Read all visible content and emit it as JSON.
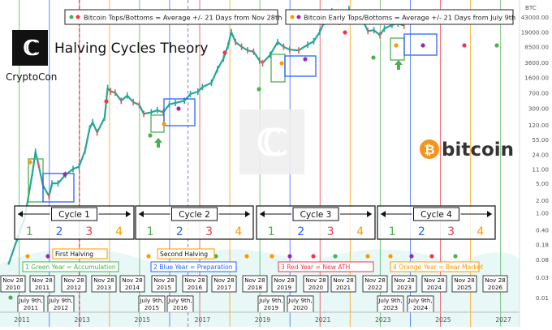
{
  "header": {
    "title": "Halving Cycles Theory",
    "brand": "CryptoCon",
    "coin_name": "bitcoin",
    "coin_symbol": "₿",
    "legend_tops": "Bitcoin Tops/Bottoms = Average +/- 21 Days from Nov 28th",
    "legend_early": "Bitcoin  Early Tops/Bottoms = Average +/- 21 Days from July 9th",
    "currency": "BTC"
  },
  "cycles": [
    {
      "label": "Cycle 1",
      "years": [
        "1",
        "2",
        "3",
        "4"
      ]
    },
    {
      "label": "Cycle 2",
      "years": [
        "1",
        "2",
        "3",
        "4"
      ]
    },
    {
      "label": "Cycle 3",
      "years": [
        "1",
        "2",
        "3",
        "4"
      ]
    },
    {
      "label": "Cycle 4",
      "years": [
        "1",
        "2",
        "3",
        "4"
      ]
    }
  ],
  "halvings": [
    {
      "label": "First Halving"
    },
    {
      "label": "Second Halving"
    }
  ],
  "year_legend": [
    {
      "label": "1 Green Year = Accumulation",
      "color": "#4caf50"
    },
    {
      "label": "2 Blue Year = Preparation",
      "color": "#2962ff"
    },
    {
      "label": "3 Red Year = New ATH",
      "color": "#f23645"
    },
    {
      "label": "4 Orange Year = Bear Market",
      "color": "#ff9800"
    }
  ],
  "nov_labels": [
    "Nov 28\n2010",
    "Nov 28\n2011",
    "Nov 28\n2012",
    "Nov 28\n2013",
    "Nov 28\n2014",
    "Nov 28\n2015",
    "Nov 28\n2016",
    "Nov 28\n2017",
    "Nov 28\n2018",
    "Nov 28\n2019",
    "Nov 28\n2020",
    "Nov 28\n2021",
    "Nov 28\n2022",
    "Nov 28\n2023",
    "Nov 28\n2024",
    "Nov 28\n2025",
    "Nov 28\n2026"
  ],
  "july_labels": [
    "July 9th,\n2011",
    "July 9th,\n2012",
    "July 9th,\n2015",
    "July 9th,\n2016",
    "July 9th,\n2019",
    "July 9th,\n2020",
    "July 9th,\n2023",
    "July 9th,\n2024"
  ],
  "colors": {
    "green": "#4caf50",
    "blue": "#2962ff",
    "red": "#f23645",
    "orange": "#ff9800",
    "up": "#26a69a",
    "down": "#ef5350",
    "bitcoin": "#f7931a"
  },
  "chart_data": {
    "type": "line",
    "title": "Halving Cycles Theory",
    "y_scale": "log",
    "ylim": [
      0.01,
      200000
    ],
    "xlim": [
      2011,
      2027
    ],
    "x_ticks": [
      "2011",
      "2013",
      "2015",
      "2017",
      "2019",
      "2021",
      "2023",
      "2025",
      "2027"
    ],
    "y_ticks": [
      "43000.00",
      "19000.00",
      "8500.00",
      "3600.00",
      "1600.00",
      "700.00",
      "300.00",
      "120.00",
      "55.00",
      "24.00",
      "11.00",
      "5.00",
      "2.00",
      "1.00",
      "0.40",
      "0.18",
      "0.08",
      "0.03",
      "0.01"
    ],
    "grid": false,
    "series": [
      {
        "x": [
          2010.55,
          2010.85,
          2011.1,
          2011.35,
          2011.45,
          2011.55,
          2011.7,
          2011.9,
          2012.0,
          2012.2,
          2012.45,
          2012.7,
          2012.9,
          2013.1,
          2013.25,
          2013.35,
          2013.5,
          2013.75,
          2013.85,
          2013.95,
          2014.1,
          2014.3,
          2014.5,
          2014.7,
          2014.9,
          2015.05,
          2015.3,
          2015.5,
          2015.7,
          2015.9,
          2016.1,
          2016.4,
          2016.6,
          2016.85,
          2017.0,
          2017.3,
          2017.5,
          2017.7,
          2017.85,
          2017.96,
          2018.1,
          2018.3,
          2018.5,
          2018.7,
          2018.9,
          2019.0,
          2019.25,
          2019.5,
          2019.7,
          2019.9,
          2020.2,
          2020.5,
          2020.7,
          2020.9,
          2021.05,
          2021.3,
          2021.55,
          2021.75,
          2021.87,
          2022.05,
          2022.3,
          2022.5,
          2022.7,
          2022.9,
          2023.05,
          2023.3,
          2023.5,
          2023.7
        ],
        "values": [
          0.06,
          0.25,
          0.8,
          9,
          28,
          14,
          4.5,
          2.5,
          5,
          5,
          8,
          11,
          12.5,
          30,
          100,
          140,
          80,
          180,
          900,
          750,
          700,
          450,
          600,
          420,
          360,
          220,
          240,
          270,
          240,
          370,
          400,
          450,
          650,
          740,
          950,
          1200,
          2500,
          4500,
          9000,
          19000,
          11000,
          8500,
          7000,
          6500,
          4000,
          3500,
          5500,
          11000,
          8500,
          7300,
          7000,
          9500,
          11500,
          19000,
          33000,
          58000,
          33000,
          48000,
          66000,
          38000,
          40000,
          20000,
          21000,
          16000,
          23000,
          28000,
          30000,
          27000
        ]
      }
    ]
  }
}
